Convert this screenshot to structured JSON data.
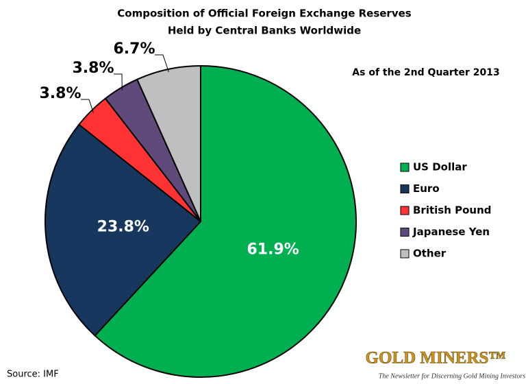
{
  "chart_data": {
    "type": "pie",
    "title": [
      "Composition of Official Foreign Exchange Reserves",
      "Held by Central Banks Worldwide"
    ],
    "subtitle": "As of the 2nd Quarter 2013",
    "categories": [
      "US Dollar",
      "Euro",
      "British Pound",
      "Japanese  Yen",
      "Other"
    ],
    "values": [
      61.9,
      23.8,
      3.8,
      3.8,
      6.7
    ],
    "value_labels": [
      "61.9%",
      "23.8%",
      "3.8%",
      "3.8%",
      "6.7%"
    ],
    "colors": [
      "#00b050",
      "#17375e",
      "#ff3333",
      "#604a7b",
      "#bfbfbf"
    ],
    "legend": "right",
    "source": "Source:  IMF"
  },
  "branding": {
    "logo": "GOLD MINERS™",
    "tagline": "The Newsletter for Discerning Gold Mining Investors"
  }
}
